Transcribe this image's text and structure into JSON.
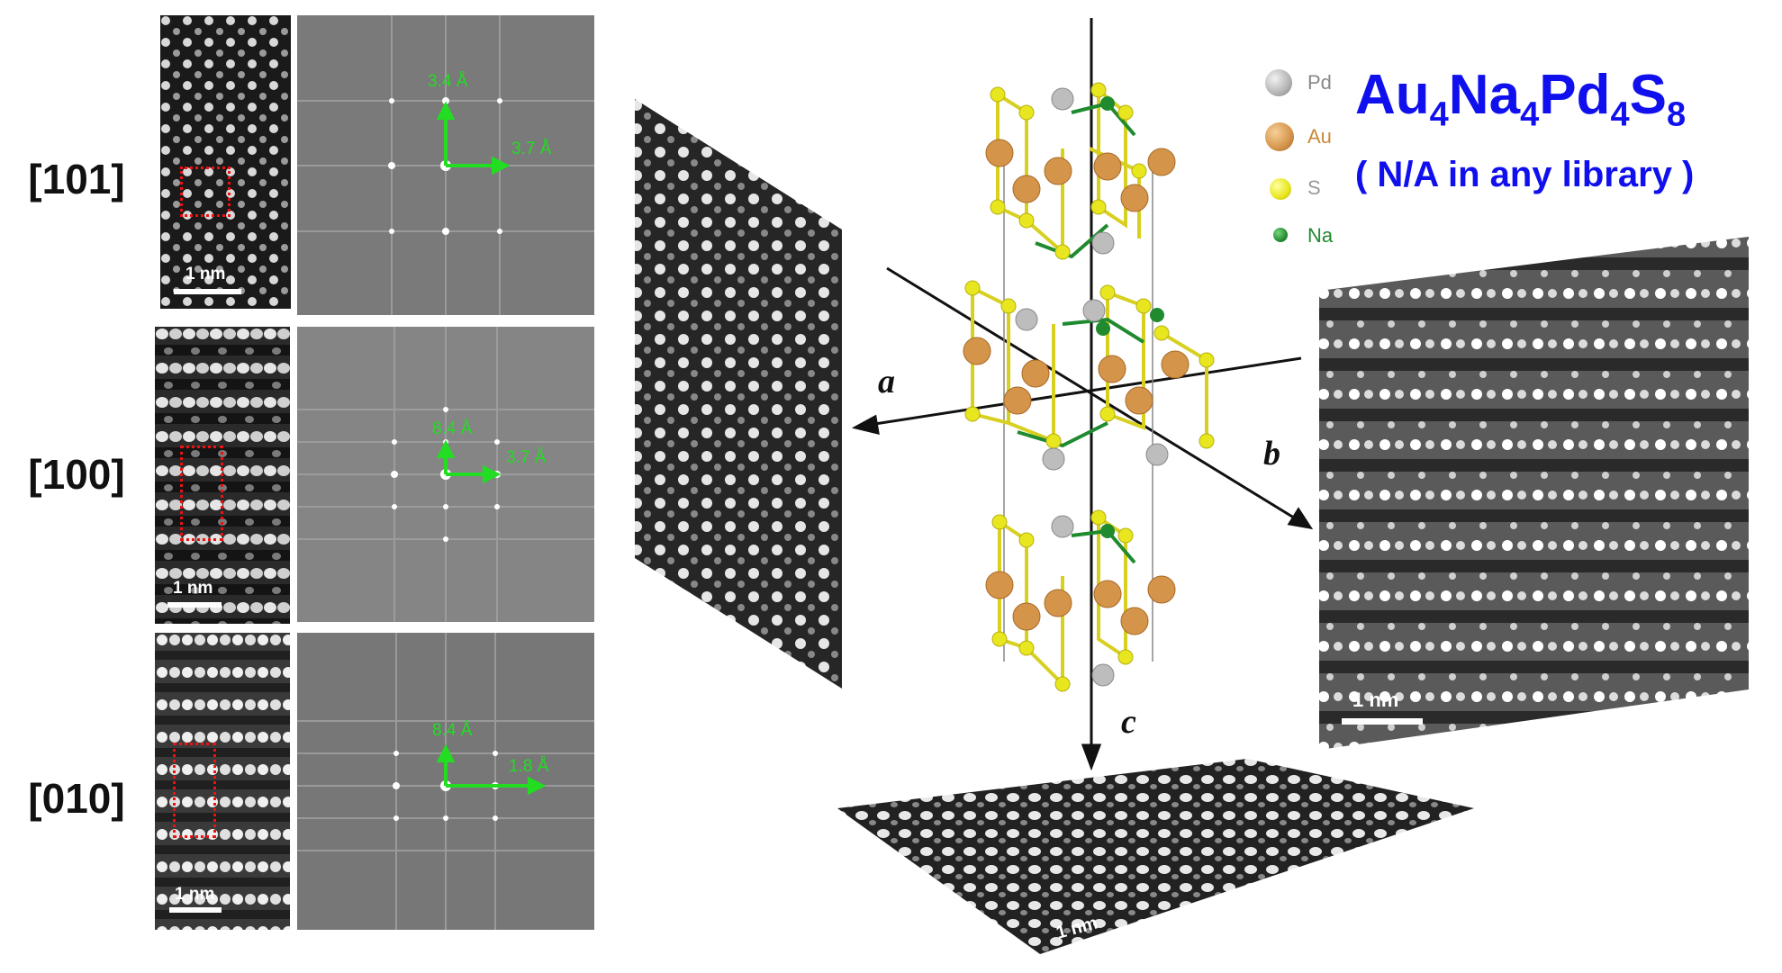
{
  "zone_axes": [
    {
      "label": "[101]"
    },
    {
      "label": "[100]"
    },
    {
      "label": "[010]"
    }
  ],
  "scale_bar_label": "1 nm",
  "fft_annotations": [
    {
      "vertical": "3.4 Å",
      "horizontal": "3.7 Å"
    },
    {
      "vertical": "8.4 Å",
      "horizontal": "3.7 Å"
    },
    {
      "vertical": "8.4 Å",
      "horizontal": "1.8 Å"
    }
  ],
  "legend": [
    {
      "label": "Pd",
      "color": "#b4b4b4",
      "label_color": "#888888"
    },
    {
      "label": "Au",
      "color": "#d4954a",
      "label_color": "#c88a3a"
    },
    {
      "label": "S",
      "color": "#e8e61e",
      "label_color": "#999999"
    },
    {
      "label": "Na",
      "color": "#1f8a2e",
      "label_color": "#1f8a2e"
    }
  ],
  "formula": {
    "parts": [
      "Au",
      "4",
      "Na",
      "4",
      "Pd",
      "4",
      "S",
      "8"
    ],
    "note": "( N/A in any library )"
  },
  "axes": {
    "a": "a",
    "b": "b",
    "c": "c"
  },
  "colors": {
    "formula": "#1010ee",
    "annotation_green": "#22dd22",
    "marker_red": "#ee1111"
  }
}
